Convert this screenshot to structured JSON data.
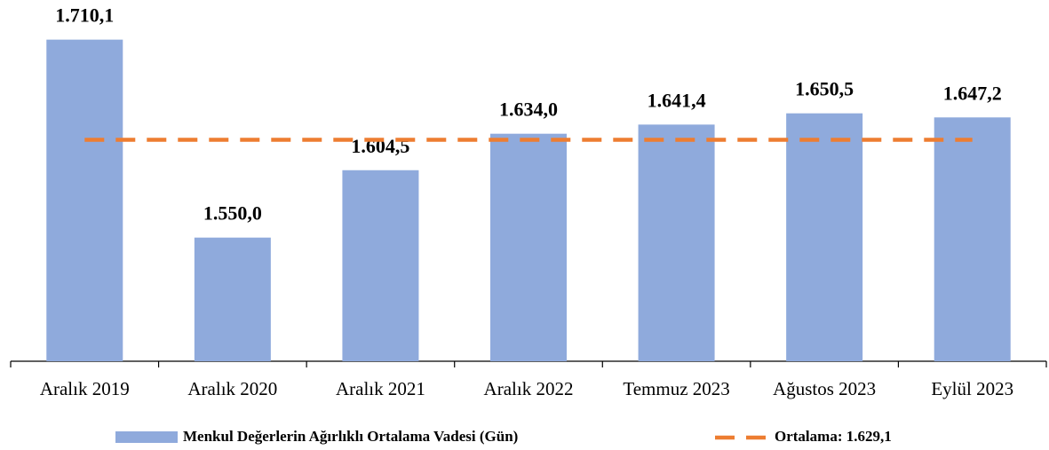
{
  "chart_data": {
    "type": "bar",
    "categories": [
      "Aralık 2019",
      "Aralık 2020",
      "Aralık 2021",
      "Aralık 2022",
      "Temmuz 2023",
      "Ağustos 2023",
      "Eylül 2023"
    ],
    "series": [
      {
        "name": "Menkul Değerlerin Ağırlıklı Ortalama Vadesi (Gün)",
        "color": "#8faadc",
        "type": "bar",
        "values": [
          1710.1,
          1550.0,
          1604.5,
          1634.0,
          1641.4,
          1650.5,
          1647.2
        ],
        "value_labels": [
          "1.710,1",
          "1.550,0",
          "1.604,5",
          "1.634,0",
          "1.641,4",
          "1.650,5",
          "1.647,2"
        ]
      },
      {
        "name": "Ortalama: 1.629,1",
        "color": "#ed7d31",
        "type": "line",
        "values": [
          1629.1,
          1629.1,
          1629.1,
          1629.1,
          1629.1,
          1629.1,
          1629.1
        ]
      }
    ],
    "ylim": [
      1450,
      1740
    ]
  }
}
